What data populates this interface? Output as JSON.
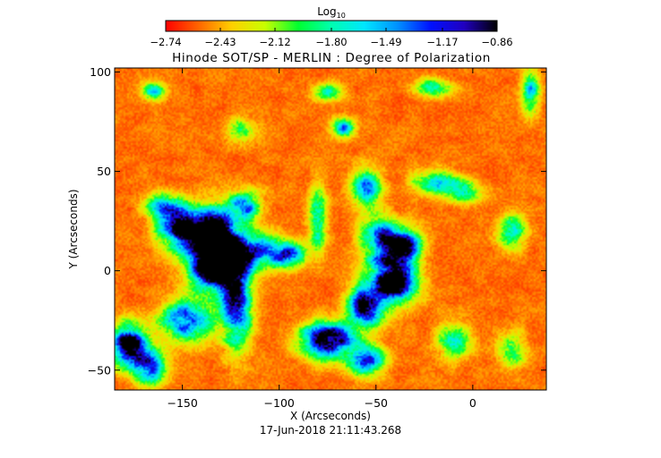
{
  "chart_data": {
    "type": "heatmap",
    "title": "Hinode SOT/SP - MERLIN : Degree of Polarization",
    "xlabel": "X (Arcseconds)",
    "ylabel": "Y (Arcseconds)",
    "xlim": [
      -185,
      38
    ],
    "ylim": [
      -60,
      102
    ],
    "x_ticks": [
      -150,
      -100,
      -50,
      0
    ],
    "y_ticks": [
      -50,
      0,
      50,
      100
    ],
    "x_tick_labels": [
      "−150",
      "−100",
      "−50",
      "0"
    ],
    "y_tick_labels": [
      "−50",
      "0",
      "50",
      "100"
    ],
    "timestamp": "17-Jun-2018 21:11:43.268",
    "colorbar": {
      "label_base": "Log",
      "label_sub": "10",
      "range": [
        -2.74,
        -0.86
      ],
      "ticks": [
        -2.74,
        -2.43,
        -2.12,
        -1.8,
        -1.49,
        -1.17,
        -0.86
      ],
      "tick_labels": [
        "−2.74",
        "−2.43",
        "−2.12",
        "−1.80",
        "−1.49",
        "−1.17",
        "−0.86"
      ],
      "colormap": [
        "#ff0000",
        "#ff6600",
        "#ffd000",
        "#c8ff00",
        "#00ff30",
        "#00ffb0",
        "#00e6ff",
        "#0090ff",
        "#0010ff",
        "#2000c0",
        "#000000"
      ]
    },
    "background_level": -2.74,
    "high_polarization_regions": [
      {
        "x": -135,
        "y": 18,
        "sx": 10,
        "sy": 9,
        "amp": 1.6
      },
      {
        "x": -132,
        "y": 2,
        "sx": 9,
        "sy": 8,
        "amp": 1.7
      },
      {
        "x": -152,
        "y": 22,
        "sx": 7,
        "sy": 6,
        "amp": 1.2
      },
      {
        "x": -122,
        "y": -15,
        "sx": 5,
        "sy": 15,
        "amp": 1.2
      },
      {
        "x": -148,
        "y": -25,
        "sx": 9,
        "sy": 7,
        "amp": 1.0
      },
      {
        "x": -178,
        "y": -37,
        "sx": 6,
        "sy": 7,
        "amp": 1.4
      },
      {
        "x": -168,
        "y": -48,
        "sx": 6,
        "sy": 6,
        "amp": 1.0
      },
      {
        "x": -110,
        "y": 10,
        "sx": 9,
        "sy": 5,
        "amp": 1.0
      },
      {
        "x": -95,
        "y": 8,
        "sx": 5,
        "sy": 4,
        "amp": 0.9
      },
      {
        "x": -118,
        "y": 33,
        "sx": 6,
        "sy": 5,
        "amp": 0.8
      },
      {
        "x": -160,
        "y": 33,
        "sx": 6,
        "sy": 4,
        "amp": 0.8
      },
      {
        "x": -80,
        "y": 27,
        "sx": 3,
        "sy": 10,
        "amp": 0.8
      },
      {
        "x": -67,
        "y": 72,
        "sx": 4,
        "sy": 3,
        "amp": 0.8
      },
      {
        "x": -55,
        "y": 42,
        "sx": 5,
        "sy": 6,
        "amp": 1.0
      },
      {
        "x": -48,
        "y": 17,
        "sx": 6,
        "sy": 7,
        "amp": 1.0
      },
      {
        "x": -42,
        "y": -5,
        "sx": 8,
        "sy": 8,
        "amp": 1.7
      },
      {
        "x": -36,
        "y": 12,
        "sx": 6,
        "sy": 6,
        "amp": 1.3
      },
      {
        "x": -55,
        "y": -18,
        "sx": 6,
        "sy": 6,
        "amp": 1.3
      },
      {
        "x": -75,
        "y": -35,
        "sx": 9,
        "sy": 6,
        "amp": 1.4
      },
      {
        "x": -55,
        "y": -45,
        "sx": 6,
        "sy": 5,
        "amp": 1.1
      },
      {
        "x": -20,
        "y": 45,
        "sx": 7,
        "sy": 4,
        "amp": 0.7
      },
      {
        "x": -5,
        "y": 40,
        "sx": 6,
        "sy": 4,
        "amp": 0.6
      },
      {
        "x": 30,
        "y": 90,
        "sx": 3,
        "sy": 8,
        "amp": 0.7
      },
      {
        "x": 20,
        "y": 20,
        "sx": 5,
        "sy": 6,
        "amp": 0.6
      },
      {
        "x": -10,
        "y": -35,
        "sx": 6,
        "sy": 6,
        "amp": 0.6
      },
      {
        "x": -20,
        "y": 92,
        "sx": 6,
        "sy": 3,
        "amp": 0.6
      },
      {
        "x": -75,
        "y": 90,
        "sx": 5,
        "sy": 3,
        "amp": 0.5
      },
      {
        "x": -165,
        "y": 90,
        "sx": 4,
        "sy": 3,
        "amp": 0.7
      },
      {
        "x": -120,
        "y": 70,
        "sx": 5,
        "sy": 4,
        "amp": 0.5
      },
      {
        "x": 20,
        "y": -40,
        "sx": 5,
        "sy": 6,
        "amp": 0.5
      }
    ]
  }
}
